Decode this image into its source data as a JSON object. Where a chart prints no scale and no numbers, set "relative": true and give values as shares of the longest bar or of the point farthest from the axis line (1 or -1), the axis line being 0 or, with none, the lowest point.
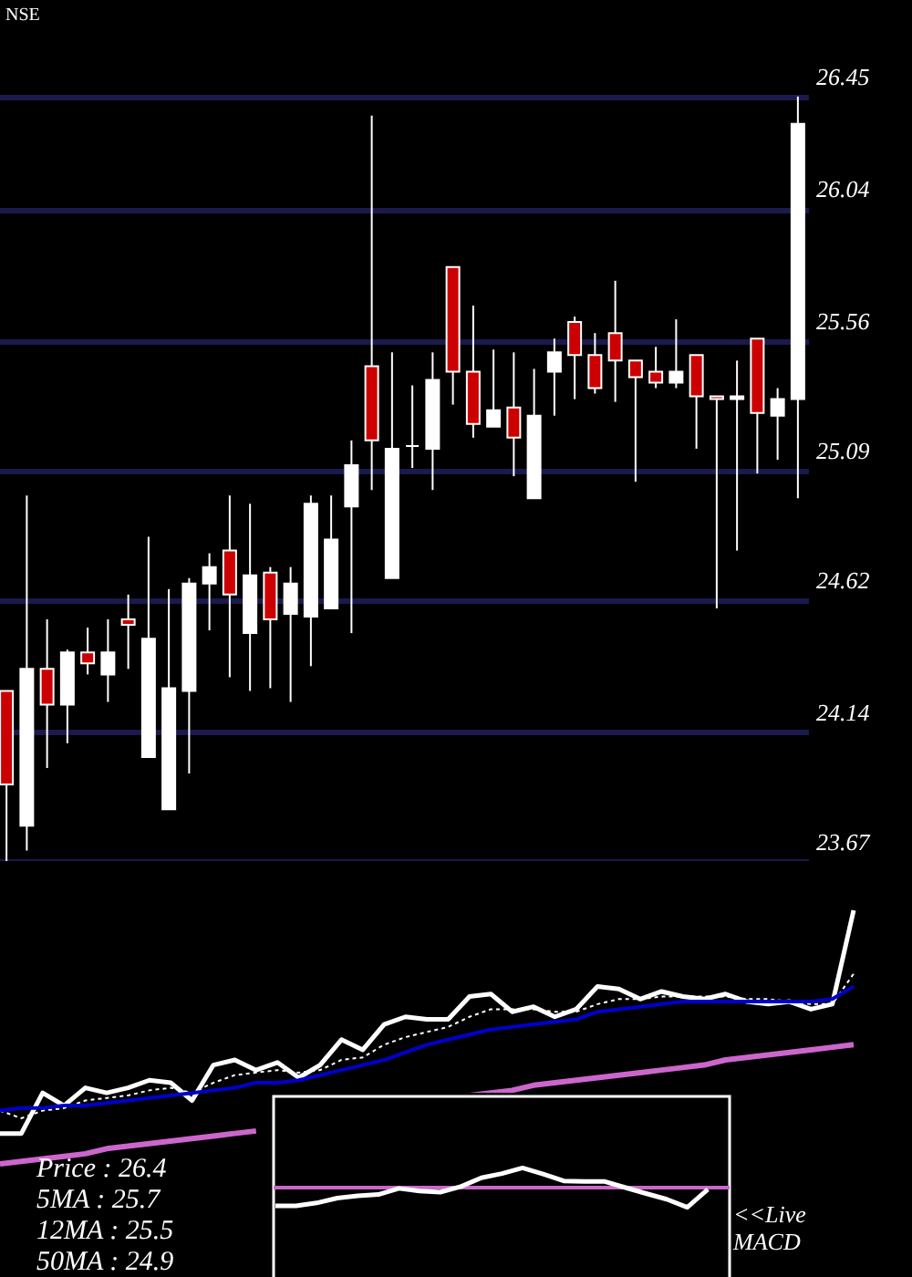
{
  "chart_data": [
    {
      "type": "candlestick",
      "title": "NSE",
      "categories": [
        null,
        null,
        null,
        null,
        null,
        null,
        null,
        null,
        null,
        null,
        null,
        null,
        null,
        null,
        null,
        null,
        null,
        null,
        null,
        null,
        null,
        null,
        null,
        null,
        null,
        null,
        null,
        null,
        null,
        null,
        null,
        null,
        null,
        null,
        null,
        null,
        null,
        null,
        null,
        null
      ],
      "ohlc": [
        [
          24.29,
          24.29,
          23.67,
          23.95
        ],
        [
          23.8,
          25.0,
          23.71,
          24.37
        ],
        [
          24.37,
          24.55,
          24.01,
          24.24
        ],
        [
          24.24,
          24.44,
          24.1,
          24.43
        ],
        [
          24.43,
          24.52,
          24.35,
          24.39
        ],
        [
          24.35,
          24.55,
          24.25,
          24.43
        ],
        [
          24.55,
          24.64,
          24.37,
          24.53
        ],
        [
          24.05,
          24.85,
          24.05,
          24.48
        ],
        [
          23.86,
          24.66,
          23.86,
          24.3
        ],
        [
          24.29,
          24.7,
          23.99,
          24.68
        ],
        [
          24.68,
          24.79,
          24.51,
          24.74
        ],
        [
          24.8,
          25.0,
          24.34,
          24.64
        ],
        [
          24.5,
          24.97,
          24.29,
          24.71
        ],
        [
          24.72,
          24.74,
          24.3,
          24.55
        ],
        [
          24.57,
          24.74,
          24.25,
          24.68
        ],
        [
          24.56,
          25.0,
          24.38,
          24.97
        ],
        [
          24.59,
          25.0,
          24.59,
          24.84
        ],
        [
          24.96,
          25.2,
          24.5,
          25.11
        ],
        [
          25.47,
          26.38,
          25.02,
          25.2
        ],
        [
          24.7,
          25.52,
          24.7,
          25.17
        ],
        [
          25.18,
          25.4,
          25.1,
          25.18
        ],
        [
          25.17,
          25.52,
          25.02,
          25.42
        ],
        [
          25.83,
          25.83,
          25.33,
          25.45
        ],
        [
          25.45,
          25.69,
          25.21,
          25.26
        ],
        [
          25.25,
          25.53,
          25.25,
          25.31
        ],
        [
          25.32,
          25.52,
          25.07,
          25.21
        ],
        [
          24.99,
          25.46,
          24.99,
          25.29
        ],
        [
          25.45,
          25.57,
          25.29,
          25.52
        ],
        [
          25.63,
          25.65,
          25.35,
          25.51
        ],
        [
          25.51,
          25.59,
          25.37,
          25.39
        ],
        [
          25.59,
          25.78,
          25.34,
          25.49
        ],
        [
          25.49,
          25.49,
          25.05,
          25.43
        ],
        [
          25.45,
          25.54,
          25.39,
          25.41
        ],
        [
          25.41,
          25.64,
          25.39,
          25.45
        ],
        [
          25.51,
          25.51,
          25.17,
          25.36
        ],
        [
          25.36,
          25.36,
          24.59,
          25.35
        ],
        [
          25.35,
          25.49,
          24.8,
          25.36
        ],
        [
          25.57,
          25.57,
          25.08,
          25.3
        ],
        [
          25.29,
          25.39,
          25.13,
          25.35
        ],
        [
          25.35,
          26.45,
          24.99,
          26.35
        ]
      ],
      "colors": [
        "#cc0000",
        "#ffffff",
        "#cc0000",
        "#ffffff",
        "#cc0000",
        "#ffffff",
        "#cc0000",
        "#ffffff",
        "#ffffff",
        "#ffffff",
        "#ffffff",
        "#cc0000",
        "#ffffff",
        "#cc0000",
        "#ffffff",
        "#ffffff",
        "#ffffff",
        "#ffffff",
        "#cc0000",
        "#ffffff",
        "#ffffff",
        "#ffffff",
        "#cc0000",
        "#cc0000",
        "#ffffff",
        "#cc0000",
        "#ffffff",
        "#ffffff",
        "#cc0000",
        "#cc0000",
        "#cc0000",
        "#cc0000",
        "#cc0000",
        "#ffffff",
        "#cc0000",
        "#cc0000",
        "#ffffff",
        "#cc0000",
        "#ffffff",
        "#ffffff"
      ],
      "ylim": [
        23.67,
        26.8
      ],
      "yticks": [
        23.67,
        24.14,
        24.62,
        25.09,
        25.56,
        26.04,
        26.45
      ],
      "grid": "y",
      "tick_labels": "y"
    },
    {
      "type": "line",
      "relative": true,
      "tick_labels": false,
      "categories": [
        null,
        null,
        null,
        null,
        null,
        null,
        null,
        null,
        null,
        null,
        null,
        null,
        null,
        null,
        null,
        null,
        null,
        null,
        null,
        null,
        null,
        null,
        null,
        null,
        null,
        null,
        null,
        null,
        null,
        null,
        null,
        null,
        null,
        null,
        null,
        null,
        null,
        null,
        null,
        null,
        null
      ],
      "series": [
        {
          "color": "#ffffff",
          "values": [
            0.12,
            0.12,
            0.28,
            0.23,
            0.3,
            0.28,
            0.3,
            0.33,
            0.32,
            0.25,
            0.39,
            0.41,
            0.37,
            0.4,
            0.34,
            0.39,
            0.49,
            0.45,
            0.55,
            0.58,
            0.57,
            0.57,
            0.66,
            0.67,
            0.6,
            0.62,
            0.58,
            0.61,
            0.7,
            0.69,
            0.65,
            0.68,
            0.66,
            0.65,
            0.67,
            0.64,
            0.63,
            0.64,
            0.61,
            0.63,
            1.0
          ]
        },
        {
          "color": "#ffffff",
          "line_style": "dotted",
          "values": [
            0.21,
            0.18,
            0.21,
            0.22,
            0.25,
            0.26,
            0.27,
            0.29,
            0.3,
            0.28,
            0.32,
            0.35,
            0.36,
            0.37,
            0.36,
            0.37,
            0.41,
            0.42,
            0.47,
            0.5,
            0.52,
            0.54,
            0.58,
            0.61,
            0.61,
            0.61,
            0.6,
            0.6,
            0.63,
            0.65,
            0.65,
            0.66,
            0.66,
            0.66,
            0.66,
            0.65,
            0.65,
            0.64,
            0.63,
            0.63,
            0.75
          ]
        },
        {
          "color": "#0000cc",
          "values": [
            0.21,
            0.22,
            0.22,
            0.23,
            0.23,
            0.24,
            0.25,
            0.26,
            0.27,
            0.28,
            0.29,
            0.3,
            0.32,
            0.32,
            0.33,
            0.35,
            0.37,
            0.39,
            0.41,
            0.44,
            0.47,
            0.49,
            0.51,
            0.53,
            0.54,
            0.55,
            0.56,
            0.57,
            0.6,
            0.61,
            0.62,
            0.63,
            0.64,
            0.64,
            0.64,
            0.64,
            0.64,
            0.64,
            0.64,
            0.65,
            0.7
          ]
        },
        {
          "color": "#cc66cc",
          "values": [
            0.0,
            0.01,
            0.02,
            0.03,
            0.04,
            0.06,
            0.07,
            0.08,
            0.09,
            0.1,
            0.11,
            0.12,
            0.13,
            null,
            null,
            null,
            null,
            null,
            null,
            null,
            null,
            null,
            0.27,
            0.28,
            0.29,
            0.31,
            0.32,
            0.33,
            0.34,
            0.35,
            0.36,
            0.37,
            0.38,
            0.39,
            0.41,
            0.42,
            0.43,
            0.44,
            0.45,
            0.46,
            0.47
          ]
        }
      ],
      "annotations": [
        "Price : 26.4",
        "5MA : 25.7",
        "12MA : 25.5",
        "50MA : 24.9"
      ]
    },
    {
      "type": "line",
      "relative": true,
      "tick_labels": false,
      "categories": [
        null,
        null,
        null,
        null,
        null,
        null,
        null,
        null,
        null,
        null,
        null,
        null,
        null,
        null,
        null,
        null,
        null,
        null,
        null,
        null,
        null,
        null
      ],
      "series": [
        {
          "color": "#ffffff",
          "values": [
            -0.93,
            -0.93,
            -0.78,
            -0.53,
            -0.42,
            -0.35,
            -0.04,
            -0.17,
            -0.23,
            0.05,
            0.5,
            0.71,
            1.0,
            0.69,
            0.34,
            0.31,
            0.31,
            0.0,
            -0.3,
            -0.59,
            -1.0,
            -0.09
          ]
        }
      ],
      "ref_lines": [
        {
          "axis": "y",
          "value": 0,
          "color": "#cc66cc"
        }
      ],
      "annotations": [
        "<<Live MACD"
      ]
    }
  ]
}
